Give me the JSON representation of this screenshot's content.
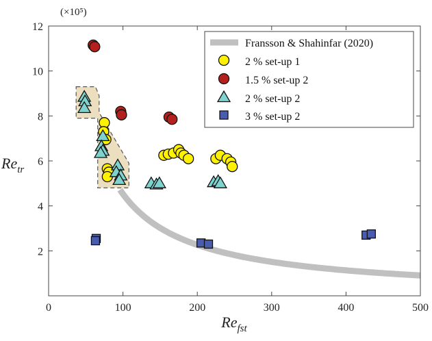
{
  "chart_data": {
    "type": "scatter",
    "title": "",
    "xlabel": {
      "main": "Re",
      "sub": "fst"
    },
    "ylabel": {
      "main": "Re",
      "sub": "tr"
    },
    "xlim": [
      0,
      500
    ],
    "ylim": [
      0,
      12
    ],
    "y_multiplier_label": "(×10⁵)",
    "x_ticks": [
      0,
      100,
      200,
      300,
      400,
      500
    ],
    "y_ticks": [
      2,
      4,
      6,
      8,
      10,
      12
    ],
    "x_tick_labels": [
      "0",
      "100",
      "200",
      "300",
      "400",
      "500"
    ],
    "y_tick_labels": [
      "2",
      "4",
      "6",
      "8",
      "10",
      "12"
    ],
    "grid": false,
    "legend_position": "top-right",
    "shaded_region": {
      "fill": "#ecdfbf",
      "outline": "#555555",
      "points": [
        [
          37,
          9.3
        ],
        [
          63,
          9.3
        ],
        [
          68,
          8.9
        ],
        [
          68,
          8.15
        ],
        [
          108,
          5.9
        ],
        [
          108,
          4.8
        ],
        [
          66,
          4.8
        ],
        [
          66,
          7.9
        ],
        [
          37,
          7.9
        ]
      ]
    },
    "reference_curve": {
      "name": "Fransson & Shahinfar (2020)",
      "color": "#c0c0c0",
      "k": 453,
      "x_start": 96,
      "x_end": 500
    },
    "series": [
      {
        "name": "2 % set-up 1",
        "marker": "circle",
        "color": "#fff200",
        "points": [
          [
            75,
            7.7
          ],
          [
            74,
            7.3
          ],
          [
            77,
            6.95
          ],
          [
            79,
            5.65
          ],
          [
            81,
            5.5
          ],
          [
            79,
            5.3
          ],
          [
            155,
            6.25
          ],
          [
            161,
            6.3
          ],
          [
            168,
            6.35
          ],
          [
            175,
            6.5
          ],
          [
            178,
            6.35
          ],
          [
            182,
            6.25
          ],
          [
            188,
            6.1
          ],
          [
            225,
            6.1
          ],
          [
            231,
            6.25
          ],
          [
            240,
            6.1
          ],
          [
            245,
            5.95
          ],
          [
            247,
            5.75
          ]
        ]
      },
      {
        "name": "1.5 % set-up 2",
        "marker": "circle",
        "color": "#b3201e",
        "points": [
          [
            60,
            11.15
          ],
          [
            62,
            11.08
          ],
          [
            97,
            8.2
          ],
          [
            98,
            8.05
          ],
          [
            162,
            7.95
          ],
          [
            166,
            7.85
          ]
        ]
      },
      {
        "name": "2 % set-up 2",
        "marker": "triangle",
        "color": "#7fd3cf",
        "points": [
          [
            48,
            8.85
          ],
          [
            49,
            8.65
          ],
          [
            48,
            8.35
          ],
          [
            73,
            7.1
          ],
          [
            71,
            6.65
          ],
          [
            73,
            6.45
          ],
          [
            70,
            6.35
          ],
          [
            93,
            5.8
          ],
          [
            91,
            5.5
          ],
          [
            97,
            5.35
          ],
          [
            95,
            5.15
          ],
          [
            138,
            5.0
          ],
          [
            145,
            4.95
          ],
          [
            149,
            5.0
          ],
          [
            222,
            5.05
          ],
          [
            228,
            5.1
          ],
          [
            231,
            5.0
          ]
        ]
      },
      {
        "name": "3 % set-up 2",
        "marker": "square",
        "color": "#4a5cb0",
        "points": [
          [
            64,
            2.55
          ],
          [
            63,
            2.45
          ],
          [
            205,
            2.35
          ],
          [
            215,
            2.3
          ],
          [
            427,
            2.7
          ],
          [
            434,
            2.75
          ]
        ]
      }
    ]
  }
}
